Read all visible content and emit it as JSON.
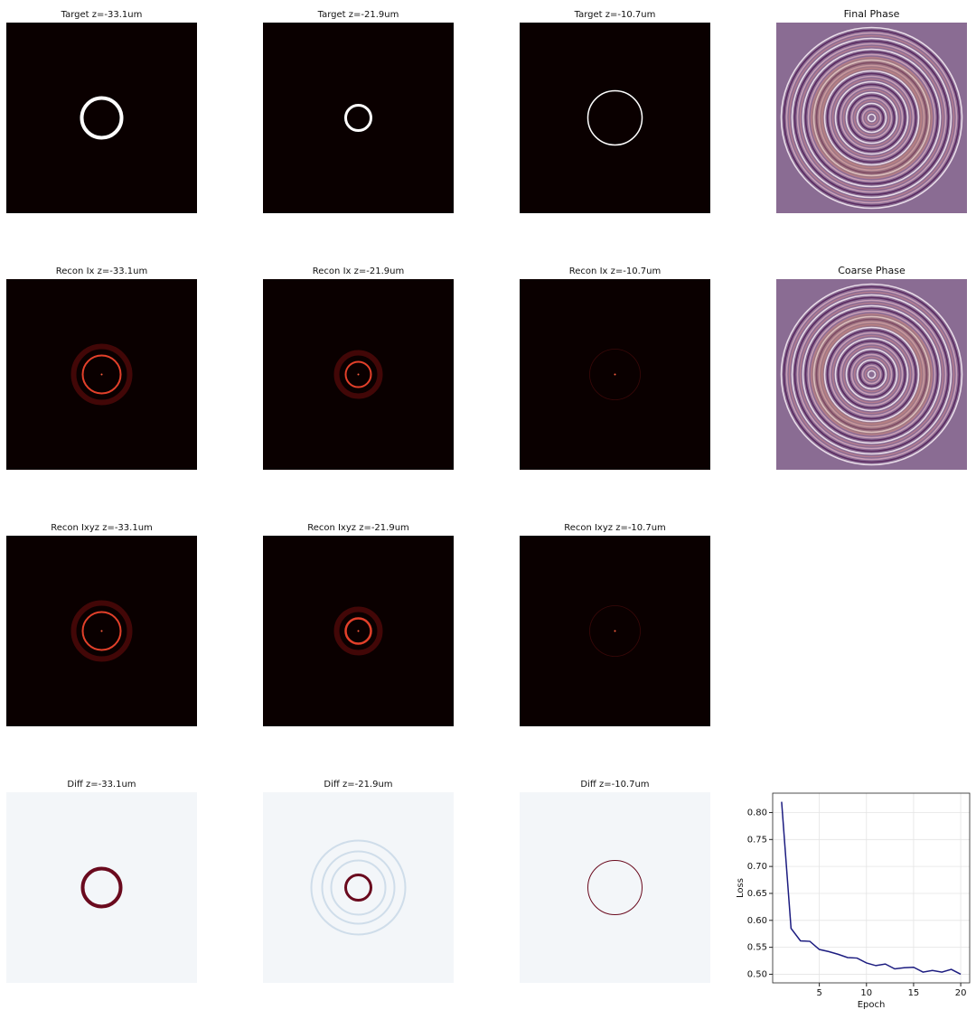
{
  "panels": [
    {
      "title": "Target z=-33.1um"
    },
    {
      "title": "Target z=-21.9um"
    },
    {
      "title": "Target z=-10.7um"
    },
    {
      "title": "Final Phase"
    },
    {
      "title": "Recon Ix z=-33.1um"
    },
    {
      "title": "Recon Ix z=-21.9um"
    },
    {
      "title": "Recon Ix z=-10.7um"
    },
    {
      "title": "Coarse Phase"
    },
    {
      "title": "Recon Ixyz z=-33.1um"
    },
    {
      "title": "Recon Ixyz z=-21.9um"
    },
    {
      "title": "Recon Ixyz z=-10.7um"
    },
    {
      "title": "Diff z=-33.1um"
    },
    {
      "title": "Diff z=-21.9um"
    },
    {
      "title": "Diff z=-10.7um"
    }
  ],
  "chart_data": {
    "type": "line",
    "xlabel": "Epoch",
    "ylabel": "Loss",
    "x": [
      1,
      2,
      3,
      4,
      5,
      6,
      7,
      8,
      9,
      10,
      11,
      12,
      13,
      14,
      15,
      16,
      17,
      18,
      19,
      20
    ],
    "values": [
      0.82,
      0.585,
      0.562,
      0.561,
      0.546,
      0.542,
      0.537,
      0.531,
      0.53,
      0.521,
      0.516,
      0.519,
      0.51,
      0.512,
      0.513,
      0.504,
      0.507,
      0.504,
      0.509,
      0.5
    ],
    "color": "#1c1c80",
    "xlim": [
      0.05,
      20.95
    ],
    "ylim": [
      0.484,
      0.836
    ],
    "xticks": [
      5,
      10,
      15,
      20
    ],
    "yticks": [
      {
        "value": 0.5,
        "label": "0.50"
      },
      {
        "value": 0.55,
        "label": "0.55"
      },
      {
        "value": 0.6,
        "label": "0.60"
      },
      {
        "value": 0.65,
        "label": "0.65"
      },
      {
        "value": 0.7,
        "label": "0.70"
      },
      {
        "value": 0.75,
        "label": "0.75"
      },
      {
        "value": 0.8,
        "label": "0.80"
      }
    ],
    "grid": true
  }
}
